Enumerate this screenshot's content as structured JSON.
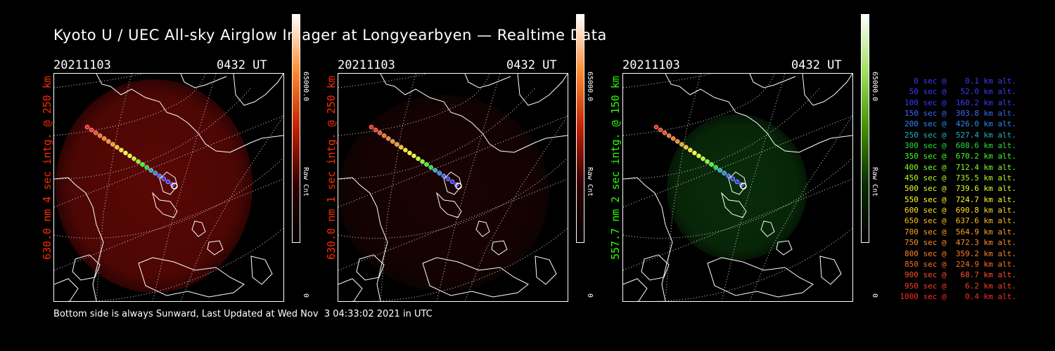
{
  "title": "Kyoto U / UEC All-sky Airglow Imager at Longyearbyen — Realtime Data",
  "panels": [
    {
      "date": "20211103",
      "time": "0432 UT",
      "ylabel": "630.0 nm 4 sec intg. @ 250 km",
      "label_color": "#ff2a00",
      "glow_color": "#8a0c08",
      "glow_strength": 0.55,
      "cbar_max": "65000.0",
      "cbar_label": "Raw Cnt",
      "cbar_min": "0",
      "cbar_gradient": [
        "#ffffff",
        "#ff8a30",
        "#c02000",
        "#300000",
        "#000000"
      ]
    },
    {
      "date": "20211103",
      "time": "0432 UT",
      "ylabel": "630.0 nm 1 sec intg. @ 250 km",
      "label_color": "#ff2a00",
      "glow_color": "#3a0606",
      "glow_strength": 0.35,
      "cbar_max": "65000.0",
      "cbar_label": "Raw Cnt",
      "cbar_min": "0",
      "cbar_gradient": [
        "#ffffff",
        "#ff8a30",
        "#c02000",
        "#300000",
        "#000000"
      ]
    },
    {
      "date": "20211103",
      "time": "0432 UT",
      "ylabel": "557.7 nm 2 sec intg. @ 150 km",
      "label_color": "#2aff00",
      "glow_color": "#0e4a10",
      "glow_strength": 0.5,
      "cbar_max": "65000.0",
      "cbar_label": "Raw Cnt",
      "cbar_min": "0",
      "cbar_gradient": [
        "#ffffff",
        "#a0e060",
        "#409000",
        "#0a2a00",
        "#000000"
      ]
    }
  ],
  "legend": [
    {
      "text": "   0 sec @    0.1 km alt.",
      "color": "#3a3aff"
    },
    {
      "text": "  50 sec @   52.0 km alt.",
      "color": "#3a3aff"
    },
    {
      "text": " 100 sec @  160.2 km alt.",
      "color": "#3a3aff"
    },
    {
      "text": " 150 sec @  303.8 km alt.",
      "color": "#3a6aff"
    },
    {
      "text": " 200 sec @  426.0 km alt.",
      "color": "#2a8aff"
    },
    {
      "text": " 250 sec @  527.4 km alt.",
      "color": "#20b0c0"
    },
    {
      "text": " 300 sec @  608.6 km alt.",
      "color": "#20e040"
    },
    {
      "text": " 350 sec @  670.2 km alt.",
      "color": "#40ff20"
    },
    {
      "text": " 400 sec @  712.4 km alt.",
      "color": "#80ff20"
    },
    {
      "text": " 450 sec @  735.5 km alt.",
      "color": "#b0ff20"
    },
    {
      "text": " 500 sec @  739.6 km alt.",
      "color": "#e0ff20"
    },
    {
      "text": " 550 sec @  724.7 km alt.",
      "color": "#ffff20"
    },
    {
      "text": " 600 sec @  690.8 km alt.",
      "color": "#ffe020"
    },
    {
      "text": " 650 sec @  637.6 km alt.",
      "color": "#ffc020"
    },
    {
      "text": " 700 sec @  564.9 km alt.",
      "color": "#ffa020"
    },
    {
      "text": " 750 sec @  472.3 km alt.",
      "color": "#ff9020"
    },
    {
      "text": " 800 sec @  359.2 km alt.",
      "color": "#ff8020"
    },
    {
      "text": " 850 sec @  224.9 km alt.",
      "color": "#ff7020"
    },
    {
      "text": " 900 sec @   68.7 km alt.",
      "color": "#ff5020"
    },
    {
      "text": " 950 sec @    6.2 km alt.",
      "color": "#ff3a20"
    },
    {
      "text": "1000 sec @    0.4 km alt.",
      "color": "#ff2a20"
    }
  ],
  "footer": "Bottom side is always Sunward, Last Updated at Wed Nov  3 04:33:02 2021 in UTC"
}
